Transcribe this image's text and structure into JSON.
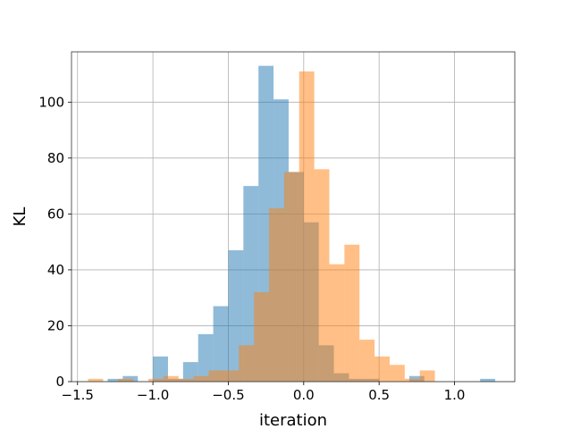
{
  "chart_data": {
    "type": "bar",
    "histogram": true,
    "title": "",
    "xlabel": "iteration",
    "ylabel": "KL",
    "xlim": [
      -1.54,
      1.4
    ],
    "ylim": [
      0,
      118
    ],
    "grid": true,
    "legend": "none",
    "xticks": [
      -1.5,
      -1.0,
      -0.5,
      0.0,
      0.5,
      1.0
    ],
    "xtick_labels": [
      "−1.5",
      "−1.0",
      "−0.5",
      "0.0",
      "0.5",
      "1.0"
    ],
    "yticks": [
      0,
      20,
      40,
      60,
      80,
      100
    ],
    "ytick_labels": [
      "0",
      "20",
      "40",
      "60",
      "80",
      "100"
    ],
    "series": [
      {
        "color": "#1f77b4",
        "opacity": 0.5,
        "bins": [
          {
            "x0": -1.3,
            "x1": -1.2,
            "count": 1
          },
          {
            "x0": -1.2,
            "x1": -1.1,
            "count": 2
          },
          {
            "x0": -1.0,
            "x1": -0.9,
            "count": 9
          },
          {
            "x0": -0.9,
            "x1": -0.8,
            "count": 1
          },
          {
            "x0": -0.8,
            "x1": -0.7,
            "count": 7
          },
          {
            "x0": -0.7,
            "x1": -0.6,
            "count": 17
          },
          {
            "x0": -0.6,
            "x1": -0.5,
            "count": 27
          },
          {
            "x0": -0.5,
            "x1": -0.4,
            "count": 47
          },
          {
            "x0": -0.4,
            "x1": -0.3,
            "count": 70
          },
          {
            "x0": -0.3,
            "x1": -0.2,
            "count": 113
          },
          {
            "x0": -0.2,
            "x1": -0.1,
            "count": 101
          },
          {
            "x0": -0.1,
            "x1": 0.0,
            "count": 75
          },
          {
            "x0": 0.0,
            "x1": 0.1,
            "count": 57
          },
          {
            "x0": 0.1,
            "x1": 0.2,
            "count": 13
          },
          {
            "x0": 0.2,
            "x1": 0.3,
            "count": 3
          },
          {
            "x0": 0.3,
            "x1": 0.4,
            "count": 1
          },
          {
            "x0": 0.4,
            "x1": 0.5,
            "count": 1
          },
          {
            "x0": 0.7,
            "x1": 0.8,
            "count": 2
          },
          {
            "x0": 1.17,
            "x1": 1.27,
            "count": 1
          }
        ]
      },
      {
        "color": "#ff7f0e",
        "opacity": 0.5,
        "bins": [
          {
            "x0": -1.43,
            "x1": -1.33,
            "count": 1
          },
          {
            "x0": -1.23,
            "x1": -1.13,
            "count": 1
          },
          {
            "x0": -1.03,
            "x1": -0.93,
            "count": 1
          },
          {
            "x0": -0.93,
            "x1": -0.83,
            "count": 2
          },
          {
            "x0": -0.83,
            "x1": -0.73,
            "count": 1
          },
          {
            "x0": -0.73,
            "x1": -0.63,
            "count": 2
          },
          {
            "x0": -0.63,
            "x1": -0.53,
            "count": 4
          },
          {
            "x0": -0.53,
            "x1": -0.43,
            "count": 4
          },
          {
            "x0": -0.43,
            "x1": -0.33,
            "count": 13
          },
          {
            "x0": -0.33,
            "x1": -0.23,
            "count": 32
          },
          {
            "x0": -0.23,
            "x1": -0.13,
            "count": 62
          },
          {
            "x0": -0.13,
            "x1": -0.03,
            "count": 75
          },
          {
            "x0": -0.03,
            "x1": 0.07,
            "count": 111
          },
          {
            "x0": 0.07,
            "x1": 0.17,
            "count": 76
          },
          {
            "x0": 0.17,
            "x1": 0.27,
            "count": 42
          },
          {
            "x0": 0.27,
            "x1": 0.37,
            "count": 49
          },
          {
            "x0": 0.37,
            "x1": 0.47,
            "count": 15
          },
          {
            "x0": 0.47,
            "x1": 0.57,
            "count": 9
          },
          {
            "x0": 0.57,
            "x1": 0.67,
            "count": 6
          },
          {
            "x0": 0.67,
            "x1": 0.77,
            "count": 1
          },
          {
            "x0": 0.77,
            "x1": 0.87,
            "count": 4
          }
        ]
      }
    ]
  }
}
